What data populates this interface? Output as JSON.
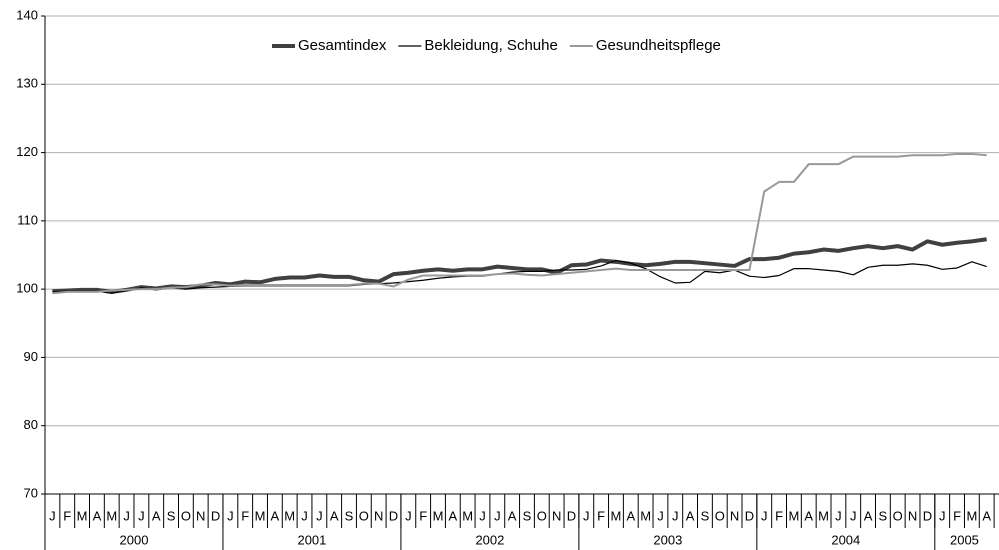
{
  "chart_data": {
    "type": "line",
    "categories": [
      "J",
      "F",
      "M",
      "A",
      "M",
      "J",
      "J",
      "A",
      "S",
      "O",
      "N",
      "D",
      "J",
      "F",
      "M",
      "A",
      "M",
      "J",
      "J",
      "A",
      "S",
      "O",
      "N",
      "D",
      "J",
      "F",
      "M",
      "A",
      "M",
      "J",
      "J",
      "A",
      "S",
      "O",
      "N",
      "D",
      "J",
      "F",
      "M",
      "A",
      "M",
      "J",
      "J",
      "A",
      "S",
      "O",
      "N",
      "D",
      "J",
      "F",
      "M",
      "A",
      "M",
      "J",
      "J",
      "A",
      "S",
      "O",
      "N",
      "D",
      "J",
      "F",
      "M",
      "A"
    ],
    "category_groups": [
      {
        "label": "2000",
        "count": 12
      },
      {
        "label": "2001",
        "count": 12
      },
      {
        "label": "2002",
        "count": 12
      },
      {
        "label": "2003",
        "count": 12
      },
      {
        "label": "2004",
        "count": 12
      },
      {
        "label": "2005",
        "count": 4
      }
    ],
    "series": [
      {
        "name": "Gesamtindex",
        "color": "#404040",
        "width": 4,
        "values": [
          99.7,
          99.8,
          99.9,
          99.9,
          99.6,
          99.9,
          100.3,
          100.1,
          100.4,
          100.3,
          100.5,
          100.9,
          100.7,
          101.1,
          101.0,
          101.5,
          101.7,
          101.7,
          102.0,
          101.8,
          101.8,
          101.3,
          101.1,
          102.2,
          102.4,
          102.7,
          102.9,
          102.7,
          102.9,
          102.9,
          103.3,
          103.1,
          102.9,
          102.9,
          102.4,
          103.5,
          103.6,
          104.2,
          104.0,
          103.7,
          103.5,
          103.7,
          104.0,
          104.0,
          103.8,
          103.6,
          103.4,
          104.4,
          104.4,
          104.6,
          105.2,
          105.4,
          105.8,
          105.6,
          106.0,
          106.3,
          106.0,
          106.3,
          105.8,
          107.0,
          106.5,
          106.8,
          107.0,
          107.3
        ]
      },
      {
        "name": "Bekleidung, Schuhe",
        "color": "#000000",
        "width": 1.2,
        "values": [
          99.6,
          99.7,
          99.7,
          99.7,
          99.4,
          99.8,
          100.2,
          99.9,
          100.2,
          100.0,
          100.2,
          100.3,
          100.4,
          100.5,
          100.5,
          100.5,
          100.5,
          100.5,
          100.5,
          100.5,
          100.5,
          100.7,
          100.8,
          100.9,
          101.1,
          101.3,
          101.6,
          101.8,
          101.9,
          101.9,
          102.2,
          102.5,
          102.6,
          102.6,
          102.8,
          102.8,
          102.9,
          103.4,
          104.2,
          103.8,
          103.0,
          101.8,
          100.9,
          101.0,
          102.6,
          102.4,
          102.8,
          101.9,
          101.7,
          102.0,
          103.0,
          103.0,
          102.8,
          102.6,
          102.1,
          103.2,
          103.5,
          103.5,
          103.7,
          103.5,
          102.9,
          103.1,
          104.0,
          103.3
        ]
      },
      {
        "name": "Gesundheitspflege",
        "color": "#999999",
        "width": 2,
        "values": [
          99.4,
          99.6,
          99.6,
          99.6,
          99.8,
          99.9,
          100.0,
          100.0,
          100.2,
          100.3,
          100.7,
          100.7,
          100.5,
          100.6,
          100.6,
          100.6,
          100.6,
          100.6,
          100.6,
          100.6,
          100.6,
          100.8,
          100.8,
          100.4,
          101.4,
          102.0,
          102.0,
          102.0,
          102.0,
          102.0,
          102.2,
          102.3,
          102.1,
          102.0,
          102.2,
          102.4,
          102.6,
          102.8,
          103.0,
          102.8,
          102.8,
          102.8,
          102.8,
          102.8,
          102.8,
          102.8,
          102.8,
          102.8,
          114.3,
          115.7,
          115.7,
          118.3,
          118.3,
          118.3,
          119.4,
          119.4,
          119.4,
          119.4,
          119.6,
          119.6,
          119.6,
          119.8,
          119.8,
          119.6
        ]
      }
    ],
    "ylim": [
      70,
      140
    ],
    "yticks": [
      70,
      80,
      90,
      100,
      110,
      120,
      130,
      140
    ],
    "grid": true,
    "legend": "top"
  }
}
